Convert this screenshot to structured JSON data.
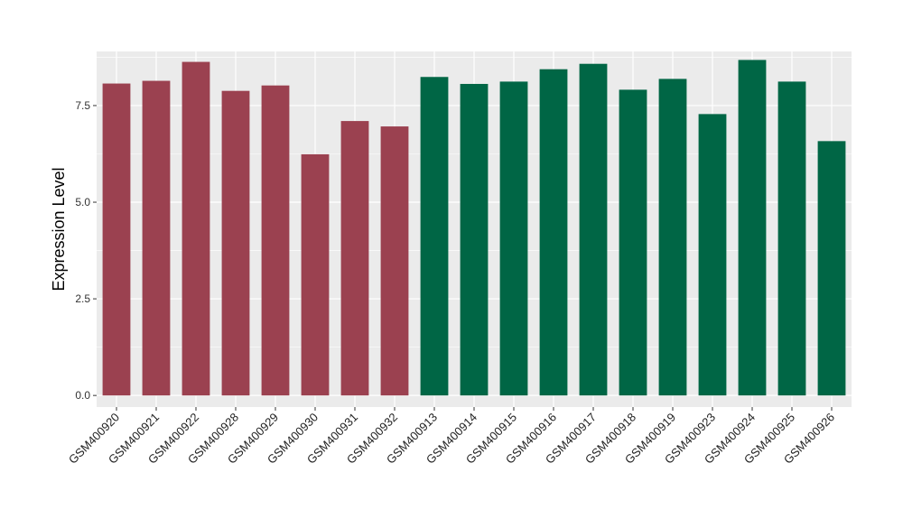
{
  "chart_data": {
    "type": "bar",
    "title": "",
    "xlabel": "",
    "ylabel": "Expression Level",
    "ylim": [
      -0.3,
      8.9
    ],
    "yticks": [
      0.0,
      2.5,
      5.0,
      7.5
    ],
    "ytick_labels": [
      "0.0",
      "2.5",
      "5.0",
      "7.5"
    ],
    "grid": true,
    "legend": "none",
    "categories": [
      "GSM400920",
      "GSM400921",
      "GSM400922",
      "GSM400928",
      "GSM400929",
      "GSM400930",
      "GSM400931",
      "GSM400932",
      "GSM400913",
      "GSM400914",
      "GSM400915",
      "GSM400916",
      "GSM400917",
      "GSM400918",
      "GSM400919",
      "GSM400923",
      "GSM400924",
      "GSM400925",
      "GSM400926"
    ],
    "values": [
      8.07,
      8.14,
      8.63,
      7.88,
      8.02,
      6.24,
      7.1,
      6.96,
      8.24,
      8.06,
      8.12,
      8.44,
      8.58,
      7.91,
      8.19,
      7.28,
      8.68,
      8.12,
      6.58
    ],
    "group_colors": [
      "#9b4150",
      "#9b4150",
      "#9b4150",
      "#9b4150",
      "#9b4150",
      "#9b4150",
      "#9b4150",
      "#9b4150",
      "#006645",
      "#006645",
      "#006645",
      "#006645",
      "#006645",
      "#006645",
      "#006645",
      "#006645",
      "#006645",
      "#006645",
      "#006645"
    ],
    "panel_background": "#ebebeb",
    "gridline_color": "#ffffff"
  }
}
